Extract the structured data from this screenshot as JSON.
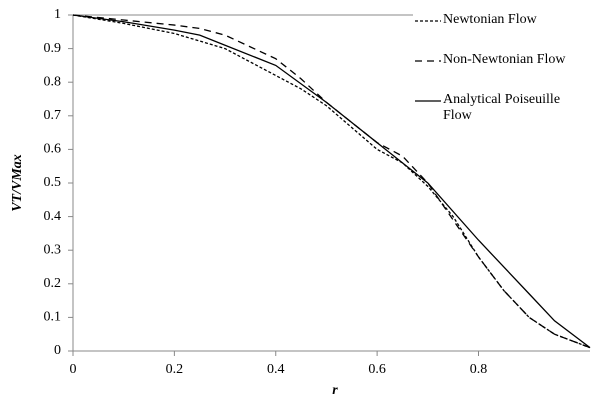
{
  "chart_data": {
    "type": "line",
    "x_label": "r",
    "y_label": "VT/VMax",
    "xlim": [
      0,
      1.02
    ],
    "ylim": [
      0,
      1
    ],
    "xticks": [
      0,
      0.2,
      0.4,
      0.6,
      0.8
    ],
    "yticks": [
      0,
      0.1,
      0.2,
      0.3,
      0.4,
      0.5,
      0.6,
      0.7,
      0.8,
      0.9,
      1
    ],
    "series": [
      {
        "name": "Newtonian Flow",
        "color": "#000000",
        "dash": "3,2",
        "x": [
          0,
          0.1,
          0.2,
          0.3,
          0.4,
          0.45,
          0.5,
          0.6,
          0.65,
          0.7,
          0.75,
          0.8,
          0.85,
          0.9,
          0.95,
          1.02
        ],
        "values": [
          1,
          0.975,
          0.945,
          0.9,
          0.82,
          0.78,
          0.73,
          0.6,
          0.56,
          0.49,
          0.4,
          0.28,
          0.18,
          0.1,
          0.05,
          0.01
        ]
      },
      {
        "name": "Non-Newtonian Flow",
        "color": "#000000",
        "dash": "7,5",
        "x": [
          0,
          0.1,
          0.2,
          0.25,
          0.3,
          0.4,
          0.45,
          0.5,
          0.6,
          0.65,
          0.7,
          0.75,
          0.8,
          0.85,
          0.9,
          0.95,
          1.02
        ],
        "values": [
          1,
          0.985,
          0.97,
          0.96,
          0.94,
          0.87,
          0.81,
          0.74,
          0.62,
          0.58,
          0.5,
          0.39,
          0.28,
          0.18,
          0.1,
          0.05,
          0.01
        ]
      },
      {
        "name": "Analytical Poiseuille Flow",
        "color": "#000000",
        "dash": "none",
        "x": [
          0,
          0.1,
          0.2,
          0.25,
          0.3,
          0.4,
          0.5,
          0.6,
          0.7,
          0.8,
          0.9,
          0.95,
          1.02
        ],
        "values": [
          1,
          0.98,
          0.955,
          0.94,
          0.91,
          0.85,
          0.74,
          0.62,
          0.5,
          0.33,
          0.17,
          0.09,
          0.01
        ]
      }
    ]
  }
}
